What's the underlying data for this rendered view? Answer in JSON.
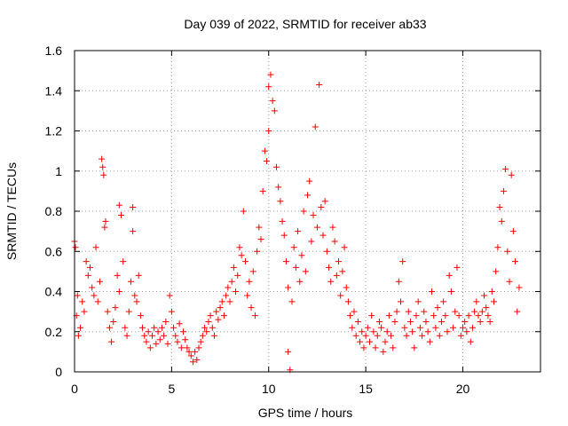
{
  "chart_data": {
    "type": "scatter",
    "title": "Day 039 of 2022, SRMTID for receiver ab33",
    "xlabel": "GPS time / hours",
    "ylabel": "SRMTID / TECUs",
    "xlim": [
      0,
      24
    ],
    "ylim": [
      0,
      1.6
    ],
    "grid": true,
    "marker": "+",
    "color": "#ff0000",
    "x_ticks": [
      0,
      5,
      10,
      15,
      20
    ],
    "x_tick_labels": [
      "0",
      "5",
      "10",
      "15",
      "20"
    ],
    "y_ticks": [
      0,
      0.2,
      0.4,
      0.6,
      0.8,
      1.0,
      1.2,
      1.4,
      1.6
    ],
    "y_tick_labels": [
      "0",
      "0.2",
      "0.4",
      "0.6",
      "0.8",
      "1",
      "1.2",
      "1.4",
      "1.6"
    ],
    "series": [
      {
        "name": "SRMTID",
        "points": [
          [
            0.0,
            0.65
          ],
          [
            0.05,
            0.62
          ],
          [
            0.1,
            0.28
          ],
          [
            0.15,
            0.38
          ],
          [
            0.2,
            0.18
          ],
          [
            0.3,
            0.22
          ],
          [
            0.4,
            0.35
          ],
          [
            0.5,
            0.3
          ],
          [
            0.6,
            0.55
          ],
          [
            0.7,
            0.48
          ],
          [
            0.8,
            0.52
          ],
          [
            0.9,
            0.42
          ],
          [
            1.0,
            0.38
          ],
          [
            1.1,
            0.62
          ],
          [
            1.2,
            0.35
          ],
          [
            1.3,
            0.45
          ],
          [
            1.4,
            1.06
          ],
          [
            1.45,
            1.02
          ],
          [
            1.5,
            0.98
          ],
          [
            1.55,
            0.72
          ],
          [
            1.6,
            0.75
          ],
          [
            1.7,
            0.3
          ],
          [
            1.8,
            0.22
          ],
          [
            1.9,
            0.15
          ],
          [
            2.0,
            0.25
          ],
          [
            2.1,
            0.32
          ],
          [
            2.2,
            0.48
          ],
          [
            2.3,
            0.4
          ],
          [
            2.3,
            0.83
          ],
          [
            2.4,
            0.78
          ],
          [
            2.5,
            0.55
          ],
          [
            2.6,
            0.22
          ],
          [
            2.7,
            0.18
          ],
          [
            2.8,
            0.3
          ],
          [
            2.9,
            0.45
          ],
          [
            3.0,
            0.7
          ],
          [
            3.0,
            0.82
          ],
          [
            3.1,
            0.38
          ],
          [
            3.2,
            0.35
          ],
          [
            3.3,
            0.48
          ],
          [
            3.4,
            0.28
          ],
          [
            3.5,
            0.22
          ],
          [
            3.6,
            0.18
          ],
          [
            3.7,
            0.15
          ],
          [
            3.8,
            0.2
          ],
          [
            3.9,
            0.12
          ],
          [
            4.0,
            0.18
          ],
          [
            4.1,
            0.22
          ],
          [
            4.2,
            0.14
          ],
          [
            4.3,
            0.2
          ],
          [
            4.4,
            0.16
          ],
          [
            4.5,
            0.22
          ],
          [
            4.6,
            0.18
          ],
          [
            4.7,
            0.25
          ],
          [
            4.8,
            0.14
          ],
          [
            4.9,
            0.38
          ],
          [
            5.0,
            0.3
          ],
          [
            5.1,
            0.22
          ],
          [
            5.2,
            0.18
          ],
          [
            5.3,
            0.15
          ],
          [
            5.4,
            0.24
          ],
          [
            5.5,
            0.12
          ],
          [
            5.6,
            0.2
          ],
          [
            5.7,
            0.16
          ],
          [
            5.8,
            0.12
          ],
          [
            5.9,
            0.1
          ],
          [
            6.0,
            0.08
          ],
          [
            6.1,
            0.05
          ],
          [
            6.2,
            0.1
          ],
          [
            6.3,
            0.06
          ],
          [
            6.4,
            0.12
          ],
          [
            6.5,
            0.15
          ],
          [
            6.6,
            0.18
          ],
          [
            6.7,
            0.22
          ],
          [
            6.8,
            0.2
          ],
          [
            6.9,
            0.25
          ],
          [
            7.0,
            0.28
          ],
          [
            7.1,
            0.22
          ],
          [
            7.2,
            0.18
          ],
          [
            7.3,
            0.3
          ],
          [
            7.4,
            0.26
          ],
          [
            7.5,
            0.32
          ],
          [
            7.6,
            0.35
          ],
          [
            7.7,
            0.28
          ],
          [
            7.8,
            0.38
          ],
          [
            7.9,
            0.42
          ],
          [
            8.0,
            0.35
          ],
          [
            8.1,
            0.45
          ],
          [
            8.2,
            0.52
          ],
          [
            8.3,
            0.4
          ],
          [
            8.4,
            0.48
          ],
          [
            8.5,
            0.62
          ],
          [
            8.6,
            0.58
          ],
          [
            8.7,
            0.8
          ],
          [
            8.8,
            0.55
          ],
          [
            8.9,
            0.38
          ],
          [
            9.0,
            0.45
          ],
          [
            9.1,
            0.32
          ],
          [
            9.2,
            0.5
          ],
          [
            9.3,
            0.28
          ],
          [
            9.4,
            0.6
          ],
          [
            9.5,
            0.72
          ],
          [
            9.6,
            0.66
          ],
          [
            9.7,
            0.9
          ],
          [
            9.8,
            1.1
          ],
          [
            9.9,
            1.05
          ],
          [
            10.0,
            1.2
          ],
          [
            10.0,
            1.42
          ],
          [
            10.1,
            1.48
          ],
          [
            10.2,
            1.35
          ],
          [
            10.3,
            1.3
          ],
          [
            10.4,
            1.02
          ],
          [
            10.5,
            0.92
          ],
          [
            10.6,
            0.85
          ],
          [
            10.7,
            0.75
          ],
          [
            10.8,
            0.68
          ],
          [
            10.9,
            0.55
          ],
          [
            11.0,
            0.42
          ],
          [
            11.0,
            0.1
          ],
          [
            11.1,
            0.01
          ],
          [
            11.2,
            0.35
          ],
          [
            11.3,
            0.62
          ],
          [
            11.4,
            0.52
          ],
          [
            11.5,
            0.7
          ],
          [
            11.6,
            0.45
          ],
          [
            11.7,
            0.58
          ],
          [
            11.8,
            0.8
          ],
          [
            11.9,
            0.5
          ],
          [
            12.0,
            0.88
          ],
          [
            12.1,
            0.95
          ],
          [
            12.2,
            0.65
          ],
          [
            12.3,
            0.78
          ],
          [
            12.4,
            1.22
          ],
          [
            12.5,
            0.72
          ],
          [
            12.6,
            1.43
          ],
          [
            12.7,
            0.82
          ],
          [
            12.8,
            0.68
          ],
          [
            12.9,
            0.85
          ],
          [
            13.0,
            0.6
          ],
          [
            13.1,
            0.52
          ],
          [
            13.2,
            0.45
          ],
          [
            13.3,
            0.72
          ],
          [
            13.4,
            0.65
          ],
          [
            13.5,
            0.48
          ],
          [
            13.6,
            0.55
          ],
          [
            13.7,
            0.38
          ],
          [
            13.8,
            0.5
          ],
          [
            13.9,
            0.62
          ],
          [
            14.0,
            0.42
          ],
          [
            14.1,
            0.35
          ],
          [
            14.2,
            0.28
          ],
          [
            14.3,
            0.22
          ],
          [
            14.4,
            0.3
          ],
          [
            14.5,
            0.18
          ],
          [
            14.6,
            0.25
          ],
          [
            14.7,
            0.15
          ],
          [
            14.8,
            0.2
          ],
          [
            14.9,
            0.12
          ],
          [
            15.0,
            0.18
          ],
          [
            15.1,
            0.22
          ],
          [
            15.2,
            0.15
          ],
          [
            15.3,
            0.28
          ],
          [
            15.4,
            0.2
          ],
          [
            15.5,
            0.12
          ],
          [
            15.6,
            0.18
          ],
          [
            15.7,
            0.25
          ],
          [
            15.8,
            0.22
          ],
          [
            15.9,
            0.1
          ],
          [
            16.0,
            0.15
          ],
          [
            16.1,
            0.2
          ],
          [
            16.2,
            0.28
          ],
          [
            16.3,
            0.18
          ],
          [
            16.4,
            0.12
          ],
          [
            16.5,
            0.25
          ],
          [
            16.6,
            0.3
          ],
          [
            16.7,
            0.45
          ],
          [
            16.8,
            0.35
          ],
          [
            16.9,
            0.55
          ],
          [
            17.0,
            0.22
          ],
          [
            17.1,
            0.18
          ],
          [
            17.2,
            0.3
          ],
          [
            17.3,
            0.25
          ],
          [
            17.4,
            0.2
          ],
          [
            17.5,
            0.12
          ],
          [
            17.6,
            0.28
          ],
          [
            17.7,
            0.35
          ],
          [
            17.8,
            0.22
          ],
          [
            17.9,
            0.18
          ],
          [
            18.0,
            0.3
          ],
          [
            18.1,
            0.25
          ],
          [
            18.2,
            0.2
          ],
          [
            18.3,
            0.15
          ],
          [
            18.4,
            0.4
          ],
          [
            18.5,
            0.28
          ],
          [
            18.6,
            0.22
          ],
          [
            18.7,
            0.32
          ],
          [
            18.8,
            0.18
          ],
          [
            18.9,
            0.25
          ],
          [
            19.0,
            0.35
          ],
          [
            19.1,
            0.28
          ],
          [
            19.2,
            0.2
          ],
          [
            19.3,
            0.48
          ],
          [
            19.4,
            0.4
          ],
          [
            19.5,
            0.22
          ],
          [
            19.6,
            0.3
          ],
          [
            19.7,
            0.52
          ],
          [
            19.8,
            0.28
          ],
          [
            19.9,
            0.18
          ],
          [
            20.0,
            0.22
          ],
          [
            20.1,
            0.25
          ],
          [
            20.2,
            0.2
          ],
          [
            20.3,
            0.28
          ],
          [
            20.4,
            0.15
          ],
          [
            20.5,
            0.22
          ],
          [
            20.6,
            0.3
          ],
          [
            20.7,
            0.35
          ],
          [
            20.8,
            0.28
          ],
          [
            20.9,
            0.25
          ],
          [
            21.0,
            0.3
          ],
          [
            21.1,
            0.38
          ],
          [
            21.2,
            0.32
          ],
          [
            21.3,
            0.28
          ],
          [
            21.4,
            0.25
          ],
          [
            21.5,
            0.4
          ],
          [
            21.6,
            0.35
          ],
          [
            21.7,
            0.5
          ],
          [
            21.8,
            0.62
          ],
          [
            21.9,
            0.82
          ],
          [
            22.0,
            0.75
          ],
          [
            22.1,
            0.9
          ],
          [
            22.2,
            1.01
          ],
          [
            22.3,
            0.6
          ],
          [
            22.4,
            0.45
          ],
          [
            22.5,
            0.98
          ],
          [
            22.6,
            0.7
          ],
          [
            22.7,
            0.55
          ],
          [
            22.8,
            0.3
          ],
          [
            22.9,
            0.42
          ]
        ]
      }
    ]
  }
}
